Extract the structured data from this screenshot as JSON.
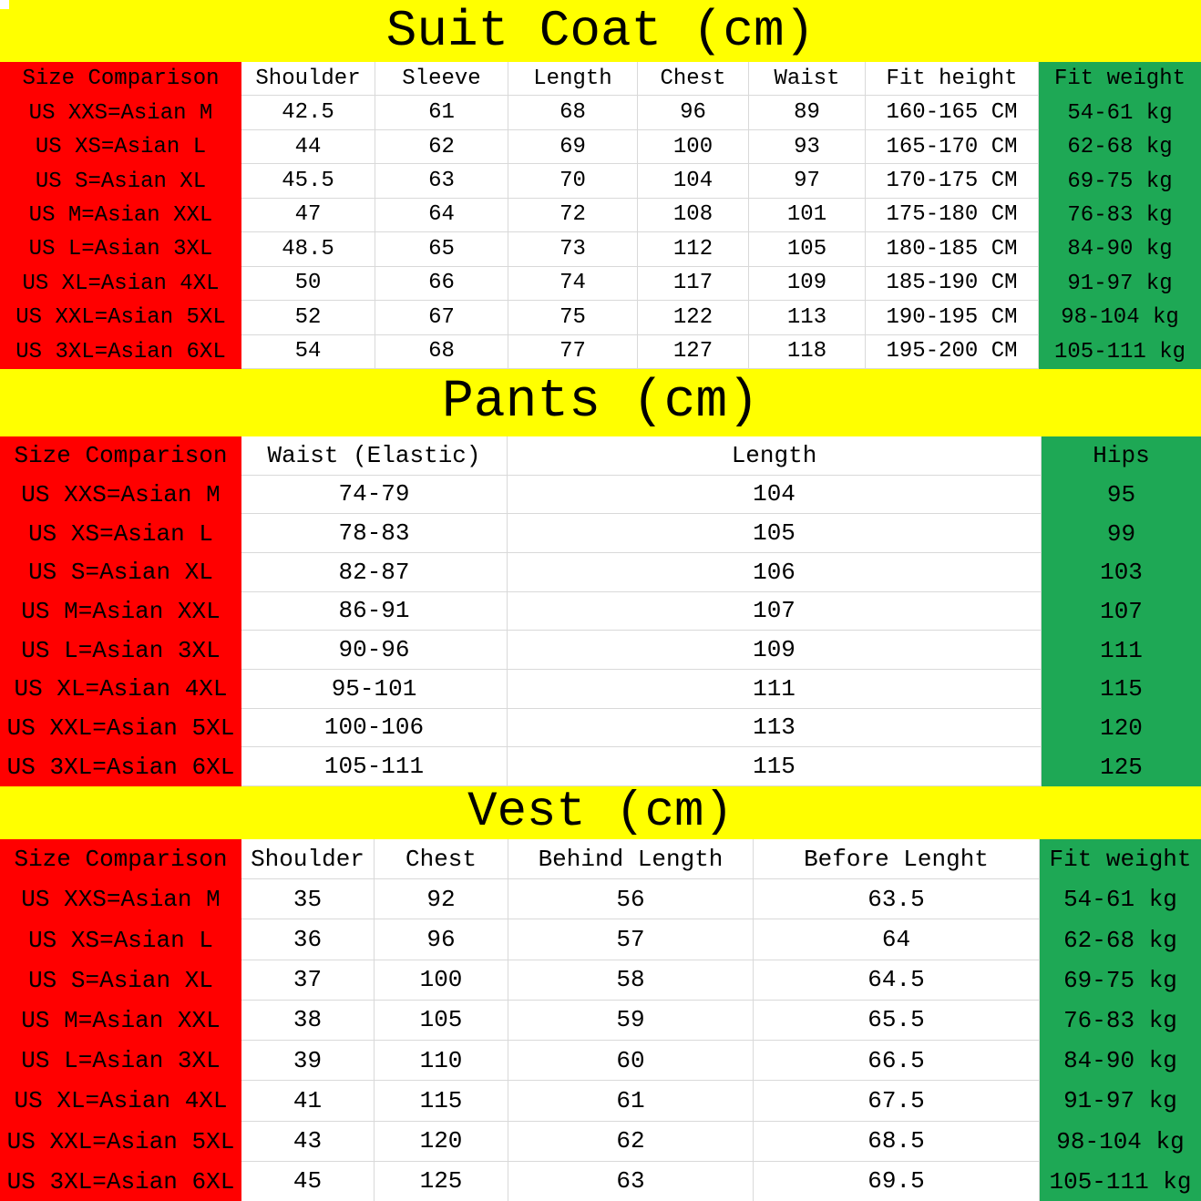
{
  "colors": {
    "title_background": "#ffff00",
    "size_column_background": "#ff0000",
    "last_column_background": "#1ea855",
    "gridline": "#d9d9d9",
    "text": "#000000"
  },
  "sections": [
    {
      "id": "suit-coat",
      "title": "Suit Coat (cm)",
      "header_row": {
        "size": "Size Comparison",
        "middle": [
          "Shoulder",
          "Sleeve",
          "Length",
          "Chest",
          "Waist",
          "Fit height"
        ],
        "last": "Fit weight"
      },
      "rows": [
        {
          "size": "US XXS=Asian M",
          "middle": [
            "42.5",
            "61",
            "68",
            "96",
            "89",
            "160-165 CM"
          ],
          "last": "54-61 kg"
        },
        {
          "size": "US XS=Asian L",
          "middle": [
            "44",
            "62",
            "69",
            "100",
            "93",
            "165-170 CM"
          ],
          "last": "62-68 kg"
        },
        {
          "size": "US S=Asian XL",
          "middle": [
            "45.5",
            "63",
            "70",
            "104",
            "97",
            "170-175 CM"
          ],
          "last": "69-75 kg"
        },
        {
          "size": "US M=Asian XXL",
          "middle": [
            "47",
            "64",
            "72",
            "108",
            "101",
            "175-180 CM"
          ],
          "last": "76-83 kg"
        },
        {
          "size": "US L=Asian 3XL",
          "middle": [
            "48.5",
            "65",
            "73",
            "112",
            "105",
            "180-185 CM"
          ],
          "last": "84-90 kg"
        },
        {
          "size": "US XL=Asian 4XL",
          "middle": [
            "50",
            "66",
            "74",
            "117",
            "109",
            "185-190 CM"
          ],
          "last": "91-97 kg"
        },
        {
          "size": "US XXL=Asian 5XL",
          "middle": [
            "52",
            "67",
            "75",
            "122",
            "113",
            "190-195 CM"
          ],
          "last": "98-104 kg"
        },
        {
          "size": "US 3XL=Asian 6XL",
          "middle": [
            "54",
            "68",
            "77",
            "127",
            "118",
            "195-200 CM"
          ],
          "last": "105-111 kg"
        }
      ]
    },
    {
      "id": "pants",
      "title": "Pants (cm)",
      "header_row": {
        "size": "Size Comparison",
        "middle": [
          "Waist (Elastic)",
          "Length"
        ],
        "last": "Hips"
      },
      "rows": [
        {
          "size": "US XXS=Asian M",
          "middle": [
            "74-79",
            "104"
          ],
          "last": "95"
        },
        {
          "size": "US XS=Asian L",
          "middle": [
            "78-83",
            "105"
          ],
          "last": "99"
        },
        {
          "size": "US S=Asian XL",
          "middle": [
            "82-87",
            "106"
          ],
          "last": "103"
        },
        {
          "size": "US M=Asian XXL",
          "middle": [
            "86-91",
            "107"
          ],
          "last": "107"
        },
        {
          "size": "US L=Asian 3XL",
          "middle": [
            "90-96",
            "109"
          ],
          "last": "111"
        },
        {
          "size": "US XL=Asian 4XL",
          "middle": [
            "95-101",
            "111"
          ],
          "last": "115"
        },
        {
          "size": "US XXL=Asian 5XL",
          "middle": [
            "100-106",
            "113"
          ],
          "last": "120"
        },
        {
          "size": "US 3XL=Asian 6XL",
          "middle": [
            "105-111",
            "115"
          ],
          "last": "125"
        }
      ]
    },
    {
      "id": "vest",
      "title": "Vest (cm)",
      "header_row": {
        "size": "Size Comparison",
        "middle": [
          "Shoulder",
          "Chest",
          "Behind Length",
          "Before Lenght"
        ],
        "last": "Fit weight"
      },
      "rows": [
        {
          "size": "US XXS=Asian M",
          "middle": [
            "35",
            "92",
            "56",
            "63.5"
          ],
          "last": "54-61 kg"
        },
        {
          "size": "US XS=Asian L",
          "middle": [
            "36",
            "96",
            "57",
            "64"
          ],
          "last": "62-68 kg"
        },
        {
          "size": "US S=Asian XL",
          "middle": [
            "37",
            "100",
            "58",
            "64.5"
          ],
          "last": "69-75 kg"
        },
        {
          "size": "US M=Asian XXL",
          "middle": [
            "38",
            "105",
            "59",
            "65.5"
          ],
          "last": "76-83 kg"
        },
        {
          "size": "US L=Asian 3XL",
          "middle": [
            "39",
            "110",
            "60",
            "66.5"
          ],
          "last": "84-90 kg"
        },
        {
          "size": "US XL=Asian 4XL",
          "middle": [
            "41",
            "115",
            "61",
            "67.5"
          ],
          "last": "91-97 kg"
        },
        {
          "size": "US XXL=Asian 5XL",
          "middle": [
            "43",
            "120",
            "62",
            "68.5"
          ],
          "last": "98-104 kg"
        },
        {
          "size": "US 3XL=Asian 6XL",
          "middle": [
            "45",
            "125",
            "63",
            "69.5"
          ],
          "last": "105-111 kg"
        }
      ]
    }
  ]
}
